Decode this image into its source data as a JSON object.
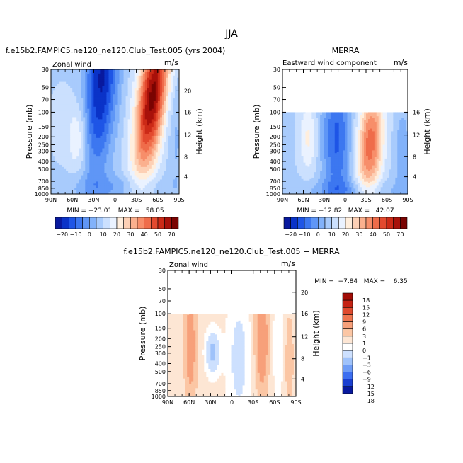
{
  "page": {
    "main_title": "JJA"
  },
  "palette_main": [
    "#08199e",
    "#0a33c8",
    "#1e55e6",
    "#3c77f0",
    "#5f96f6",
    "#82b2fa",
    "#a8cbfc",
    "#cbe0fe",
    "#eaf2ff",
    "#ffeedd",
    "#fdd0b5",
    "#fbb08e",
    "#f78e6a",
    "#ef6c4a",
    "#e34a2f",
    "#cc2a17",
    "#a8110a",
    "#7a0402"
  ],
  "palette_diff": [
    "#08199e",
    "#1a3fd0",
    "#3c6ef0",
    "#6e9cf5",
    "#9fc2fa",
    "#cde0fe",
    "#ffffff",
    "#fde6d4",
    "#fbc6a4",
    "#f7a07a",
    "#ee7650",
    "#de4a2e",
    "#c42314",
    "#a10d06"
  ],
  "chart_data": [
    {
      "type": "heatmap",
      "title": "f.e15b2.FAMPIC5.ne120_ne120.Club_Test.005 (yrs 2004)",
      "left_label": "Zonal wind",
      "right_label": "m/s",
      "ylabel": "Pressure (mb)",
      "ylabel_right": "Height (km)",
      "x_ticks": [
        "90N",
        "60N",
        "30N",
        "0",
        "30S",
        "60S",
        "90S"
      ],
      "y_ticks": [
        "30",
        "50",
        "70",
        "100",
        "150",
        "200",
        "250",
        "300",
        "400",
        "500",
        "700",
        "850",
        "1000"
      ],
      "y_ticks_right": [
        "4",
        "8",
        "12",
        "16",
        "20"
      ],
      "ylim": [
        1000,
        30
      ],
      "stats": "MIN = −23.01   MAX =   58.05",
      "min": -23.01,
      "max": 58.05,
      "colorbar_labels": [
        "−20",
        "−10",
        "0",
        "10",
        "20",
        "30",
        "40",
        "50",
        "70"
      ]
    },
    {
      "type": "heatmap",
      "title": "MERRA",
      "left_label": "Eastward wind component",
      "right_label": "m/s",
      "ylabel": "Pressure (mb)",
      "ylabel_right": "Height (km)",
      "x_ticks": [
        "90N",
        "60N",
        "30N",
        "0",
        "30S",
        "60S",
        "90S"
      ],
      "y_ticks": [
        "30",
        "50",
        "70",
        "100",
        "150",
        "200",
        "250",
        "300",
        "400",
        "500",
        "700",
        "850",
        "1000"
      ],
      "y_ticks_right": [
        "4",
        "8",
        "12",
        "16"
      ],
      "ylim": [
        1000,
        30
      ],
      "data_top_pressure": 100,
      "stats": "MIN = −12.82   MAX =   42.07",
      "min": -12.82,
      "max": 42.07,
      "colorbar_labels": [
        "−20",
        "−10",
        "0",
        "10",
        "20",
        "30",
        "40",
        "50",
        "70"
      ]
    },
    {
      "type": "heatmap",
      "title": "f.e15b2.FAMPIC5.ne120_ne120.Club_Test.005 − MERRA",
      "left_label": "Zonal wind",
      "right_label": "m/s",
      "ylabel": "Pressure (mb)",
      "ylabel_right": "Height (km)",
      "x_ticks": [
        "90N",
        "60N",
        "30N",
        "0",
        "30S",
        "60S",
        "90S"
      ],
      "y_ticks": [
        "30",
        "50",
        "70",
        "100",
        "150",
        "200",
        "250",
        "300",
        "400",
        "500",
        "700",
        "850",
        "1000"
      ],
      "y_ticks_right": [
        "4",
        "8",
        "12",
        "16",
        "20"
      ],
      "ylim": [
        1000,
        30
      ],
      "data_top_pressure": 100,
      "stats": "MIN =  −7.84   MAX =    6.35",
      "min": -7.84,
      "max": 6.35,
      "colorbar_labels": [
        "18",
        "15",
        "12",
        "9",
        "6",
        "3",
        "1",
        "0",
        "−1",
        "−3",
        "−6",
        "−9",
        "−12",
        "−15",
        "−18"
      ]
    }
  ]
}
